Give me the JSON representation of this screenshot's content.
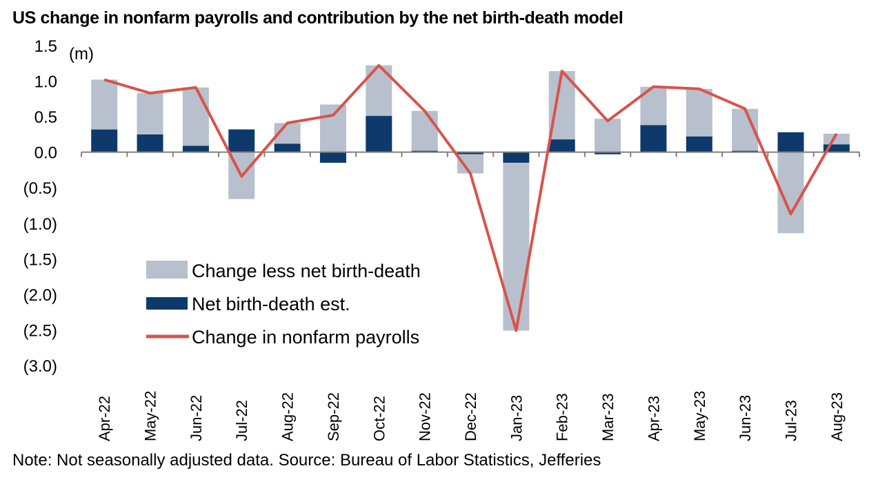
{
  "chart_data": {
    "type": "bar",
    "title": "US change in nonfarm payrolls and contribution by the net birth-death model",
    "ylabel": "(m)",
    "ylim": [
      -3.0,
      1.5
    ],
    "yticks": [
      "1.5",
      "1.0",
      "0.5",
      "0.0",
      "(0.5)",
      "(1.0)",
      "(1.5)",
      "(2.0)",
      "(2.5)",
      "(3.0)"
    ],
    "ytick_values": [
      1.5,
      1.0,
      0.5,
      0.0,
      -0.5,
      -1.0,
      -1.5,
      -2.0,
      -2.5,
      -3.0
    ],
    "stacked": true,
    "categories": [
      "Apr-22",
      "May-22",
      "Jun-22",
      "Jul-22",
      "Aug-22",
      "Sep-22",
      "Oct-22",
      "Nov-22",
      "Dec-22",
      "Jan-23",
      "Feb-23",
      "Mar-23",
      "Apr-23",
      "May-23",
      "Jun-23",
      "Jul-23",
      "Aug-23"
    ],
    "series": [
      {
        "name": "Change less net birth-death",
        "kind": "bar",
        "color": "#b7c0cc",
        "values": [
          0.7,
          0.58,
          0.82,
          -0.66,
          0.29,
          0.67,
          0.71,
          0.56,
          -0.27,
          -2.36,
          0.96,
          0.47,
          0.54,
          0.67,
          0.59,
          -1.14,
          0.15
        ]
      },
      {
        "name": "Net birth-death est.",
        "kind": "bar",
        "color": "#0d3a6b",
        "values": [
          0.32,
          0.25,
          0.09,
          0.32,
          0.12,
          -0.15,
          0.51,
          0.02,
          -0.03,
          -0.15,
          0.18,
          -0.03,
          0.38,
          0.22,
          0.02,
          0.28,
          0.11
        ]
      },
      {
        "name": "Change in nonfarm payrolls",
        "kind": "line",
        "color": "#d9534a",
        "values": [
          1.02,
          0.83,
          0.91,
          -0.34,
          0.41,
          0.52,
          1.22,
          0.58,
          -0.3,
          -2.51,
          1.14,
          0.44,
          0.92,
          0.89,
          0.61,
          -0.87,
          0.26
        ]
      }
    ],
    "legend_position": "bottom-left",
    "grid": false,
    "note": "Note: Not seasonally adjusted data. Source: Bureau of Labor Statistics, Jefferies"
  }
}
